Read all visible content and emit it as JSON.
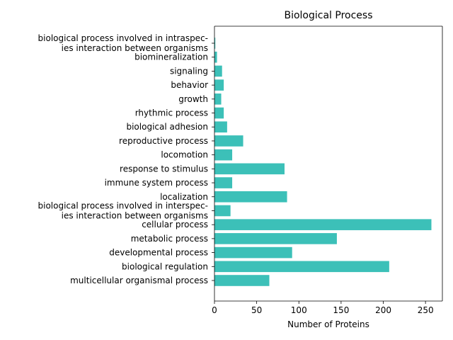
{
  "chart_data": {
    "type": "bar",
    "orientation": "horizontal",
    "title": "Biological Process",
    "xlabel": "Number of Proteins",
    "ylabel": "",
    "xlim": [
      0,
      270
    ],
    "xticks": [
      0,
      50,
      100,
      150,
      200,
      250
    ],
    "grid": false,
    "bar_color": "#3cc0b8",
    "categories": [
      "multicellular organismal process",
      "biological regulation",
      "developmental process",
      "metabolic process",
      "cellular process",
      "biological process involved in interspec-\nies interaction between organisms",
      "localization",
      "immune system process",
      "response to stimulus",
      "locomotion",
      "reproductive process",
      "biological adhesion",
      "rhythmic process",
      "growth",
      "behavior",
      "signaling",
      "biomineralization",
      "biological process involved in intraspec-\nies interaction between organisms"
    ],
    "values": [
      65,
      207,
      92,
      145,
      257,
      19,
      86,
      21,
      83,
      21,
      34,
      15,
      11,
      8,
      11,
      9,
      3,
      1
    ]
  }
}
